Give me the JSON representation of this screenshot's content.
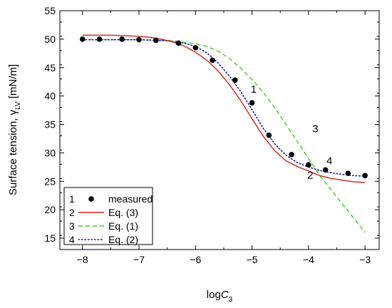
{
  "chart_data": {
    "type": "line",
    "xlabel": {
      "main": "log",
      "italic": "C",
      "sub": "3"
    },
    "ylabel": {
      "main": "Surface tension, ",
      "symbol": "γ",
      "sub": "LV",
      "unit": " [mN/m]"
    },
    "xlim": [
      -8.4,
      -2.75
    ],
    "ylim": [
      13,
      55
    ],
    "x_ticks": [
      -8,
      -7,
      -6,
      -5,
      -4,
      -3
    ],
    "y_ticks": [
      15,
      20,
      25,
      30,
      35,
      40,
      45,
      50,
      55
    ],
    "grid": false,
    "legend_position": "bottom-left",
    "series": [
      {
        "id": "1",
        "name": "measured",
        "style": "markers",
        "color": "#000000",
        "x": [
          -8.0,
          -7.7,
          -7.3,
          -7.0,
          -6.7,
          -6.3,
          -6.0,
          -5.7,
          -5.3,
          -5.0,
          -4.7,
          -4.3,
          -4.0,
          -3.7,
          -3.3,
          -3.0
        ],
        "y": [
          50.0,
          50.0,
          50.0,
          49.9,
          49.8,
          49.3,
          48.5,
          46.3,
          42.8,
          38.8,
          33.1,
          29.7,
          27.9,
          27.0,
          26.4,
          26.0
        ]
      },
      {
        "id": "2",
        "name": "Eq. (3)",
        "style": "solid",
        "color": "#cc2222",
        "x": [
          -8.0,
          -7.5,
          -7.0,
          -6.8,
          -6.6,
          -6.4,
          -6.2,
          -6.0,
          -5.8,
          -5.6,
          -5.4,
          -5.2,
          -5.0,
          -4.8,
          -4.6,
          -4.4,
          -4.2,
          -4.0,
          -3.8,
          -3.6,
          -3.4,
          -3.2,
          -3.0
        ],
        "y": [
          50.7,
          50.7,
          50.5,
          50.3,
          50.0,
          49.5,
          48.8,
          47.7,
          46.3,
          44.4,
          42.0,
          39.2,
          36.0,
          32.9,
          30.4,
          28.6,
          27.6,
          26.8,
          26.0,
          25.5,
          25.2,
          24.9,
          24.8
        ]
      },
      {
        "id": "3",
        "name": "Eq. (1)",
        "style": "dashed",
        "color": "#44cc22",
        "x": [
          -8.0,
          -7.5,
          -7.0,
          -6.5,
          -6.0,
          -5.8,
          -5.6,
          -5.4,
          -5.2,
          -5.0,
          -4.8,
          -4.6,
          -4.4,
          -4.2,
          -4.0,
          -3.8,
          -3.6,
          -3.4,
          -3.2,
          -3.0
        ],
        "y": [
          49.9,
          49.9,
          49.9,
          49.8,
          49.2,
          48.7,
          47.9,
          46.6,
          44.9,
          42.9,
          40.6,
          38.0,
          35.0,
          32.0,
          29.0,
          26.0,
          23.5,
          21.0,
          18.5,
          16.0
        ]
      },
      {
        "id": "4",
        "name": "Eq. (2)",
        "style": "dotted",
        "color": "#1a1aaa",
        "x": [
          -8.0,
          -7.5,
          -7.0,
          -6.5,
          -6.2,
          -6.0,
          -5.8,
          -5.6,
          -5.4,
          -5.2,
          -5.0,
          -4.8,
          -4.6,
          -4.4,
          -4.2,
          -4.0,
          -3.8,
          -3.6,
          -3.4,
          -3.2,
          -3.0
        ],
        "y": [
          49.9,
          49.9,
          49.9,
          49.7,
          49.3,
          48.7,
          47.6,
          45.8,
          43.5,
          40.8,
          37.6,
          34.3,
          31.6,
          29.6,
          28.3,
          27.5,
          26.9,
          26.5,
          26.2,
          26.0,
          25.9
        ]
      }
    ],
    "annotations": [
      {
        "text": "1",
        "x": -4.97,
        "y": 40.6
      },
      {
        "text": "3",
        "x": -3.88,
        "y": 33.6
      },
      {
        "text": "4",
        "x": -3.63,
        "y": 28.0
      },
      {
        "text": "2",
        "x": -3.97,
        "y": 25.5
      }
    ]
  }
}
